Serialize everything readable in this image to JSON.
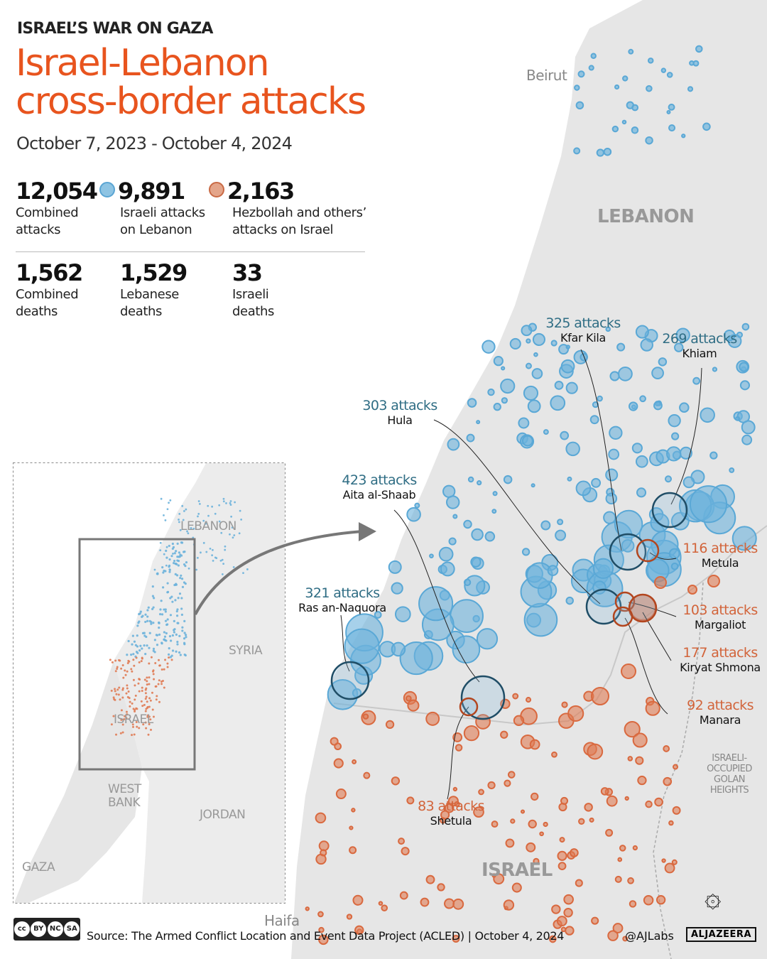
{
  "header": {
    "kicker": "ISRAEL’S WAR ON GAZA",
    "title_line1": "Israel-Lebanon",
    "title_line2": "cross-border attacks",
    "dates": "October 7, 2023 - October 4, 2024"
  },
  "stats": [
    {
      "value": "12,054",
      "label": "Combined\nattacks"
    },
    {
      "value": "9,891",
      "label": "Israeli attacks\non Lebanon",
      "dot_color": "#8ec4e3"
    },
    {
      "value": "2,163",
      "label": "Hezbollah and others’\nattacks on Israel",
      "dot_color": "#e4a58a"
    },
    {
      "value": "1,562",
      "label": "Combined\ndeaths"
    },
    {
      "value": "1,529",
      "label": "Lebanese\ndeaths"
    },
    {
      "value": "33",
      "label": "Israeli\ndeaths"
    }
  ],
  "colors": {
    "title": "#e8541e",
    "israeli_attacks": "#6db3dc",
    "hezbollah_attacks": "#e07b54",
    "lebanon_label": "#2f6d84",
    "israel_label": "#d2643a",
    "land": "#e5e5e5"
  },
  "locations": [
    {
      "count": "325 attacks",
      "place": "Kfar Kila",
      "side": "lebanon"
    },
    {
      "count": "269 attacks",
      "place": "Khiam",
      "side": "lebanon"
    },
    {
      "count": "303 attacks",
      "place": "Hula",
      "side": "lebanon"
    },
    {
      "count": "423 attacks",
      "place": "Aita al-Shaab",
      "side": "lebanon"
    },
    {
      "count": "321 attacks",
      "place": "Ras an-Naquora",
      "side": "lebanon"
    },
    {
      "count": "116 attacks",
      "place": "Metula",
      "side": "israel"
    },
    {
      "count": "103 attacks",
      "place": "Margaliot",
      "side": "israel"
    },
    {
      "count": "177 attacks",
      "place": "Kiryat Shmona",
      "side": "israel"
    },
    {
      "count": "92 attacks",
      "place": "Manara",
      "side": "israel"
    },
    {
      "count": "83 attacks",
      "place": "Shetula",
      "side": "israel"
    }
  ],
  "map_labels": {
    "beirut": "Beirut",
    "lebanon": "LEBANON",
    "israel": "ISRAEL",
    "haifa": "Haifa",
    "golan": "ISRAELI-\nOCCUPIED\nGOLAN\nHEIGHTS"
  },
  "inset_labels": {
    "lebanon": "LEBANON",
    "syria": "SYRIA",
    "israel": "ISRAEL",
    "west_bank": "WEST\nBANK",
    "jordan": "JORDAN",
    "gaza": "GAZA"
  },
  "footer": {
    "license": [
      "cc",
      "BY",
      "NC",
      "SA"
    ],
    "source": "Source:  The Armed Conflict Location and Event Data Project (ACLED) | October 4, 2024",
    "handle": "@AJLabs",
    "brand": "ALJAZEERA"
  }
}
